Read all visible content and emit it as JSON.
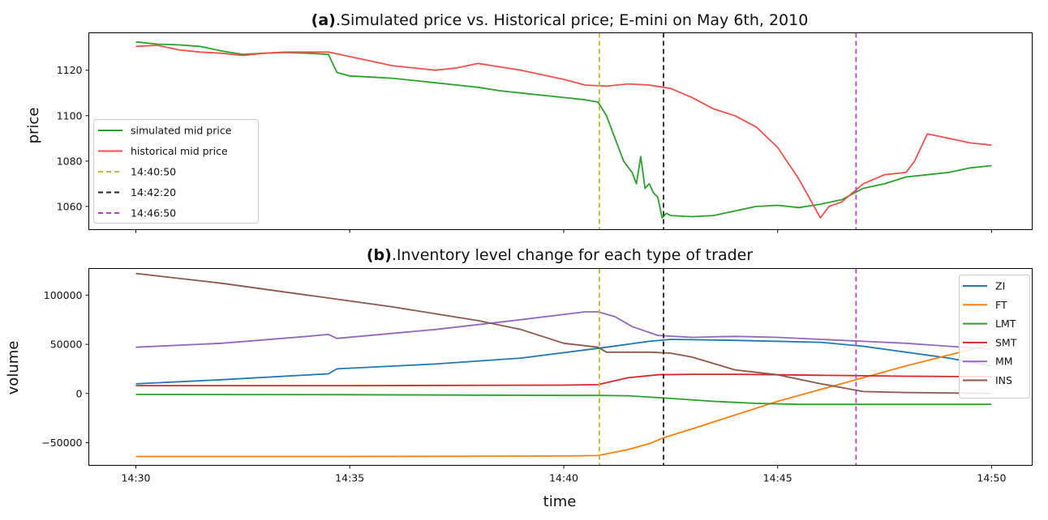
{
  "figure": {
    "xlabel": "time",
    "x_ticks": [
      "14:30",
      "14:35",
      "14:40",
      "14:45",
      "14:50"
    ],
    "xlim_minutes": [
      -1.1,
      20.95
    ],
    "event_lines": [
      {
        "label": "14:40:50",
        "minutes": 10.833,
        "color": "#bfbf2a"
      },
      {
        "label": "14:42:20",
        "minutes": 12.333,
        "color": "#222222"
      },
      {
        "label": "14:46:50",
        "minutes": 16.833,
        "color": "#c43cc4"
      }
    ]
  },
  "chart_data": [
    {
      "type": "line",
      "title_prefix": "(a)",
      "title_rest": ".Simulated price vs. Historical price; E-mini on May 6th, 2010",
      "xlabel": "time",
      "ylabel": "price",
      "ylim": [
        1049.8,
        1136.5
      ],
      "y_ticks": [
        1060,
        1080,
        1100,
        1120
      ],
      "y_tick_labels": [
        "1060",
        "1080",
        "1100",
        "1120"
      ],
      "legend_position": "lower-left",
      "legend": [
        "simulated mid price",
        "historical mid price",
        "14:40:50",
        "14:42:20",
        "14:46:50"
      ],
      "series": [
        {
          "name": "simulated mid price",
          "color": "#2ca02c",
          "x": [
            0,
            0.5,
            1,
            1.5,
            2,
            2.5,
            3,
            3.5,
            4,
            4.5,
            4.7,
            5,
            5.5,
            6,
            6.5,
            7,
            7.5,
            8,
            8.5,
            9,
            9.5,
            10,
            10.5,
            10.8,
            11,
            11.2,
            11.4,
            11.6,
            11.7,
            11.8,
            11.9,
            12,
            12.1,
            12.2,
            12.3,
            12.4,
            12.5,
            13,
            13.5,
            14,
            14.5,
            15,
            15.5,
            16,
            16.5,
            16.8,
            17,
            17.5,
            18,
            18.5,
            19,
            19.5,
            20
          ],
          "y": [
            1132.5,
            1131.5,
            1131.2,
            1130.5,
            1128.5,
            1127,
            1127.5,
            1127.8,
            1127.5,
            1127,
            1119,
            1117.5,
            1117,
            1116.5,
            1115.5,
            1114.5,
            1113.5,
            1112.5,
            1111,
            1110,
            1109,
            1108,
            1107,
            1106,
            1100,
            1090,
            1080,
            1075,
            1070,
            1082,
            1068,
            1070,
            1066,
            1064,
            1055,
            1057,
            1056,
            1055.5,
            1056,
            1058,
            1060,
            1060.5,
            1059.5,
            1061,
            1063,
            1066,
            1068,
            1070,
            1073,
            1074,
            1075,
            1077,
            1078
          ]
        },
        {
          "name": "historical mid price",
          "color": "#f0504c",
          "x": [
            0,
            0.5,
            1,
            1.5,
            2,
            2.5,
            3,
            3.5,
            4,
            4.5,
            5,
            5.5,
            6,
            6.5,
            7,
            7.5,
            8,
            8.5,
            9,
            9.5,
            10,
            10.5,
            11,
            11.5,
            12,
            12.5,
            13,
            13.5,
            14,
            14.5,
            15,
            15.5,
            16,
            16.2,
            16.5,
            17,
            17.5,
            18,
            18.2,
            18.5,
            19,
            19.5,
            20
          ],
          "y": [
            1130.5,
            1131,
            1129,
            1128,
            1127.5,
            1126.5,
            1127.5,
            1128,
            1128,
            1128,
            1126,
            1124,
            1122,
            1121,
            1120,
            1121,
            1123,
            1121.5,
            1120,
            1118,
            1116,
            1113.5,
            1113,
            1114,
            1113.5,
            1112,
            1108,
            1103,
            1100,
            1095,
            1086,
            1072,
            1055,
            1060,
            1062,
            1070,
            1074,
            1075,
            1080,
            1092,
            1090,
            1088,
            1087
          ]
        }
      ]
    },
    {
      "type": "line",
      "title_prefix": "(b)",
      "title_rest": ".Inventory level change for each type of trader",
      "xlabel": "time",
      "ylabel": "volume",
      "ylim": [
        -73000,
        127000
      ],
      "y_ticks": [
        -50000,
        0,
        50000,
        100000
      ],
      "y_tick_labels": [
        "−50000",
        "0",
        "50000",
        "100000"
      ],
      "legend_position": "upper-right",
      "legend": [
        "ZI",
        "FT",
        "LMT",
        "SMT",
        "MM",
        "INS"
      ],
      "series": [
        {
          "name": "ZI",
          "color": "#1f77b4",
          "x": [
            0,
            2,
            4.5,
            4.7,
            7,
            9,
            11,
            12,
            12.5,
            14,
            16,
            17,
            19,
            20
          ],
          "y": [
            9800,
            14000,
            20000,
            25000,
            30000,
            36000,
            47000,
            53000,
            55000,
            54000,
            52000,
            48000,
            36000,
            28000
          ]
        },
        {
          "name": "FT",
          "color": "#ff7f0e",
          "x": [
            0,
            5,
            10,
            10.8,
            11.5,
            12,
            12.333,
            13,
            14,
            15,
            16,
            17,
            18,
            19,
            20
          ],
          "y": [
            -64000,
            -64000,
            -63500,
            -63000,
            -57000,
            -51000,
            -45000,
            -36000,
            -22000,
            -8000,
            4000,
            16000,
            28000,
            39000,
            50000
          ]
        },
        {
          "name": "LMT",
          "color": "#2ca02c",
          "x": [
            0,
            5,
            10,
            10.8,
            11.5,
            12.5,
            13.5,
            14.5,
            15.5,
            16.5,
            18,
            20
          ],
          "y": [
            -1000,
            -1200,
            -2000,
            -2000,
            -2300,
            -5000,
            -8000,
            -10000,
            -11000,
            -11000,
            -11000,
            -11000
          ]
        },
        {
          "name": "SMT",
          "color": "#d62728",
          "x": [
            0,
            5,
            10,
            10.8,
            11.5,
            12.2,
            13,
            14,
            15,
            16,
            17,
            18,
            20
          ],
          "y": [
            8000,
            8000,
            8500,
            9000,
            16000,
            19000,
            19500,
            19500,
            19000,
            18500,
            18000,
            17500,
            17000
          ]
        },
        {
          "name": "MM",
          "color": "#9467bd",
          "x": [
            0,
            2,
            4,
            4.5,
            4.7,
            7,
            9,
            10.5,
            10.8,
            11.2,
            11.6,
            12.2,
            13,
            14,
            15,
            16,
            17,
            18,
            19,
            20
          ],
          "y": [
            47000,
            51000,
            58000,
            60000,
            56000,
            65000,
            75000,
            83000,
            83000,
            78000,
            68000,
            59000,
            57000,
            58000,
            57000,
            55000,
            53000,
            51000,
            48000,
            45000
          ]
        },
        {
          "name": "INS",
          "color": "#8c564b",
          "x": [
            0,
            2,
            4,
            6,
            8,
            9,
            10,
            10.8,
            11,
            12,
            12.5,
            13,
            14,
            15,
            16,
            17,
            18,
            20
          ],
          "y": [
            122000,
            112000,
            100000,
            88000,
            74000,
            65000,
            51000,
            47000,
            42000,
            42000,
            41000,
            37000,
            24000,
            19000,
            10000,
            2000,
            1000,
            0
          ]
        }
      ]
    }
  ]
}
